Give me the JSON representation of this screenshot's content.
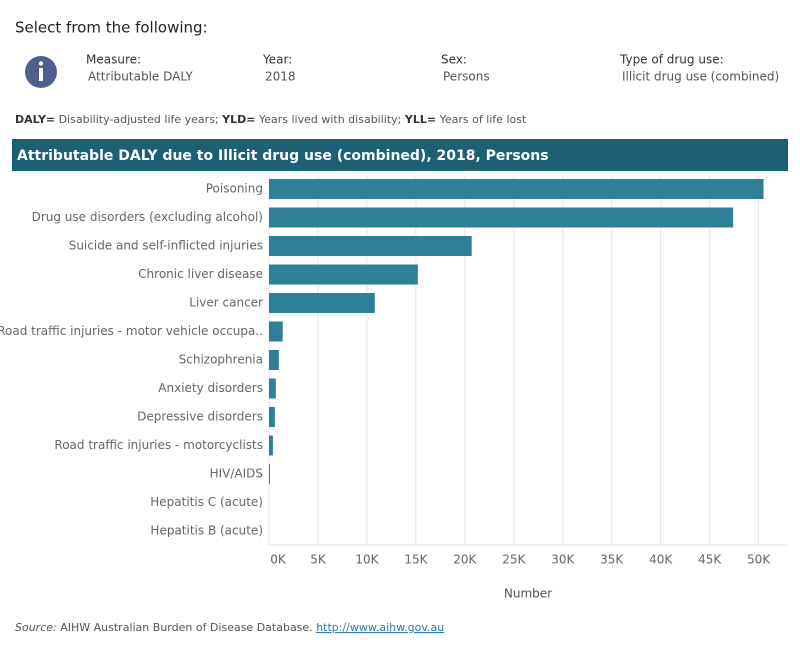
{
  "header": {
    "title": "Select from the following:"
  },
  "filters": [
    {
      "label": "Measure:",
      "value": "Attributable DALY"
    },
    {
      "label": "Year:",
      "value": "2018"
    },
    {
      "label": "Sex:",
      "value": "Persons"
    },
    {
      "label": "Type of drug use:",
      "value": "Illicit drug use (combined)"
    }
  ],
  "note": [
    {
      "term": "DALY=",
      "text": " Disability-adjusted life years; "
    },
    {
      "term": "YLD=",
      "text": " Years lived with disability; "
    },
    {
      "term": "YLL=",
      "text": " Years of life lost"
    }
  ],
  "chart_data": {
    "type": "bar",
    "orientation": "horizontal",
    "title": "Attributable DALY due to Illicit drug use (combined), 2018, Persons",
    "x_label": "Number",
    "color": "#2f7f98",
    "categories": [
      "Poisoning",
      "Drug use disorders (excluding alcohol)",
      "Suicide and self-inflicted injuries",
      "Chronic liver disease",
      "Liver cancer",
      "Road traffic injuries - motor vehicle occupa..",
      "Schizophrenia",
      "Anxiety disorders",
      "Depressive disorders",
      "Road traffic injuries - motorcyclists",
      "HIV/AIDS",
      "Hepatitis C (acute)",
      "Hepatitis B (acute)"
    ],
    "values": [
      50500,
      47400,
      20700,
      15200,
      10800,
      1400,
      1000,
      700,
      600,
      400,
      100,
      0,
      0
    ],
    "xlim": [
      0,
      53000
    ],
    "xticks": [
      {
        "value": 0,
        "label": "0K"
      },
      {
        "value": 5000,
        "label": "5K"
      },
      {
        "value": 10000,
        "label": "10K"
      },
      {
        "value": 15000,
        "label": "15K"
      },
      {
        "value": 20000,
        "label": "20K"
      },
      {
        "value": 25000,
        "label": "25K"
      },
      {
        "value": 30000,
        "label": "30K"
      },
      {
        "value": 35000,
        "label": "35K"
      },
      {
        "value": 40000,
        "label": "40K"
      },
      {
        "value": 45000,
        "label": "45K"
      },
      {
        "value": 50000,
        "label": "50K"
      }
    ],
    "grid": true
  },
  "source": {
    "label": "Source:",
    "text": " AIHW Australian Burden of Disease Database. ",
    "link": "http://www.aihw.gov.au"
  }
}
